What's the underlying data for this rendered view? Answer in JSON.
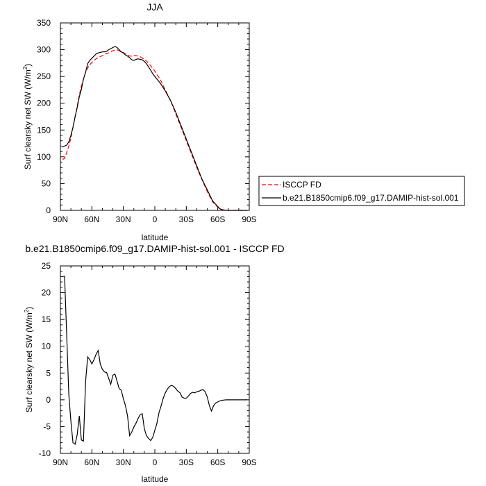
{
  "chart_data": [
    {
      "type": "line",
      "title": "JJA",
      "xlabel": "latitude",
      "ylabel": "Surf clearsky net SW (W/m",
      "ylabel_sup": "2",
      "ylabel_end": ")",
      "xlim": [
        90,
        -90
      ],
      "ylim": [
        0,
        350
      ],
      "x_ticks": [
        90,
        60,
        30,
        0,
        -30,
        -60,
        -90
      ],
      "x_tick_labels": [
        "90N",
        "60N",
        "30N",
        "0",
        "30S",
        "60S",
        "90S"
      ],
      "y_ticks": [
        0,
        50,
        100,
        150,
        200,
        250,
        300,
        350
      ],
      "y_tick_labels": [
        "0",
        "50",
        "100",
        "150",
        "200",
        "250",
        "300",
        "350"
      ],
      "grid": false,
      "legend_position": "right",
      "series": [
        {
          "name": "ISCCP FD",
          "color": "#ff0000",
          "dash": "dashed",
          "x": [
            88,
            86,
            84,
            82,
            80,
            78,
            76,
            74,
            72,
            70,
            68,
            66,
            64,
            62,
            60,
            58,
            56,
            54,
            52,
            50,
            48,
            46,
            44,
            42,
            40,
            38,
            36,
            34,
            32,
            30,
            28,
            26,
            24,
            22,
            20,
            18,
            16,
            14,
            12,
            10,
            8,
            6,
            4,
            2,
            0,
            -5,
            -10,
            -15,
            -20,
            -25,
            -30,
            -35,
            -40,
            -45,
            -50,
            -55,
            -60,
            -62,
            -64,
            -66,
            -68,
            -70,
            -75,
            -80,
            -85,
            -88
          ],
          "y": [
            95,
            97,
            108,
            120,
            135,
            155,
            175,
            195,
            215,
            232,
            245,
            258,
            266,
            272,
            276,
            280,
            283,
            285,
            287,
            289,
            291,
            293,
            294,
            296,
            298,
            299,
            300,
            298,
            296,
            295,
            292,
            290,
            288,
            288,
            289,
            289,
            288,
            287,
            284,
            282,
            279,
            275,
            270,
            265,
            260,
            245,
            225,
            205,
            180,
            155,
            130,
            105,
            80,
            57,
            35,
            16,
            6,
            3,
            1,
            0.5,
            0,
            0,
            0,
            0,
            0,
            0
          ]
        },
        {
          "name": "b.e21.B1850cmip6.f09_g17.DAMIP-hist-sol.001",
          "color": "#000000",
          "dash": "solid",
          "x": [
            88,
            86,
            84,
            82,
            80,
            78,
            76,
            74,
            72,
            70,
            68,
            66,
            64,
            62,
            60,
            58,
            56,
            54,
            52,
            50,
            48,
            46,
            44,
            42,
            40,
            38,
            36,
            34,
            32,
            30,
            28,
            26,
            24,
            22,
            20,
            18,
            16,
            14,
            12,
            10,
            8,
            6,
            4,
            2,
            0,
            -5,
            -10,
            -15,
            -20,
            -25,
            -30,
            -35,
            -40,
            -45,
            -50,
            -55,
            -60,
            -62,
            -64,
            -66,
            -68,
            -70,
            -75,
            -80,
            -85,
            -88
          ],
          "y": [
            118,
            120,
            122,
            128,
            140,
            155,
            175,
            192,
            212,
            226,
            245,
            258,
            274,
            280,
            284,
            288,
            292,
            294,
            295,
            296,
            296,
            297,
            300,
            302,
            304,
            306,
            304,
            300,
            296,
            294,
            290,
            288,
            285,
            281,
            280,
            282,
            283,
            282,
            281,
            278,
            274,
            268,
            262,
            255,
            250,
            238,
            223,
            205,
            183,
            158,
            133,
            108,
            83,
            58,
            38,
            18,
            7,
            3,
            1.5,
            0.8,
            0,
            0,
            0,
            0,
            0,
            0
          ]
        }
      ]
    },
    {
      "type": "line",
      "title": "b.e21.B1850cmip6.f09_g17.DAMIP-hist-sol.001 - ISCCP FD",
      "xlabel": "latitude",
      "ylabel": "Surf clearsky net SW (W/m",
      "ylabel_sup": "2",
      "ylabel_end": ")",
      "xlim": [
        90,
        -90
      ],
      "ylim": [
        -10,
        25
      ],
      "x_ticks": [
        90,
        60,
        30,
        0,
        -30,
        -60,
        -90
      ],
      "x_tick_labels": [
        "90N",
        "60N",
        "30N",
        "0",
        "30S",
        "60S",
        "90S"
      ],
      "y_ticks": [
        -10,
        -5,
        0,
        5,
        10,
        15,
        20,
        25
      ],
      "y_tick_labels": [
        "-10",
        "-5",
        "0",
        "5",
        "10",
        "15",
        "20",
        "25"
      ],
      "grid": false,
      "series": [
        {
          "name": "",
          "color": "#000000",
          "dash": "solid",
          "x": [
            88,
            86,
            84,
            82,
            80,
            78,
            76,
            74,
            72,
            70,
            68,
            66,
            64,
            62,
            60,
            58,
            56,
            54,
            52,
            50,
            48,
            46,
            44,
            42,
            40,
            38,
            36,
            34,
            32,
            30,
            28,
            26,
            24,
            22,
            20,
            18,
            16,
            14,
            12,
            10,
            8,
            6,
            4,
            2,
            0,
            -2,
            -4,
            -6,
            -8,
            -10,
            -12,
            -14,
            -16,
            -18,
            -20,
            -22,
            -24,
            -26,
            -28,
            -30,
            -32,
            -34,
            -36,
            -38,
            -40,
            -42,
            -44,
            -46,
            -48,
            -50,
            -52,
            -54,
            -56,
            -58,
            -60,
            -62,
            -64,
            -66,
            -68,
            -70,
            -72,
            -74,
            -76,
            -78,
            -80,
            -82,
            -84,
            -86,
            -88
          ],
          "y": [
            23,
            23.1,
            12,
            1,
            -4,
            -8,
            -8.3,
            -6.5,
            -3,
            -7.5,
            -7.7,
            3.5,
            8,
            7.5,
            6.7,
            7.5,
            8.5,
            9.2,
            6.7,
            5.7,
            5.2,
            5.1,
            4,
            2.9,
            4.6,
            4.8,
            3.5,
            2.1,
            1.8,
            0.2,
            -1.1,
            -3,
            -6.7,
            -6.0,
            -5.1,
            -4.4,
            -3.5,
            -2.8,
            -2.6,
            -5.4,
            -6.7,
            -7.2,
            -7.6,
            -7.0,
            -5.7,
            -4.4,
            -2.4,
            -1.1,
            0.3,
            1.3,
            2.0,
            2.5,
            2.7,
            2.5,
            2.1,
            1.6,
            1.3,
            0.5,
            0.3,
            0.3,
            0.7,
            1.2,
            1.4,
            1.3,
            1.5,
            1.6,
            1.8,
            1.9,
            1.5,
            0.5,
            -1.1,
            -2.1,
            -1.1,
            -0.6,
            -0.4,
            -0.2,
            -0.1,
            -0.05,
            0,
            0,
            0,
            0,
            0,
            0,
            0,
            0,
            0,
            0,
            0
          ]
        }
      ]
    }
  ]
}
